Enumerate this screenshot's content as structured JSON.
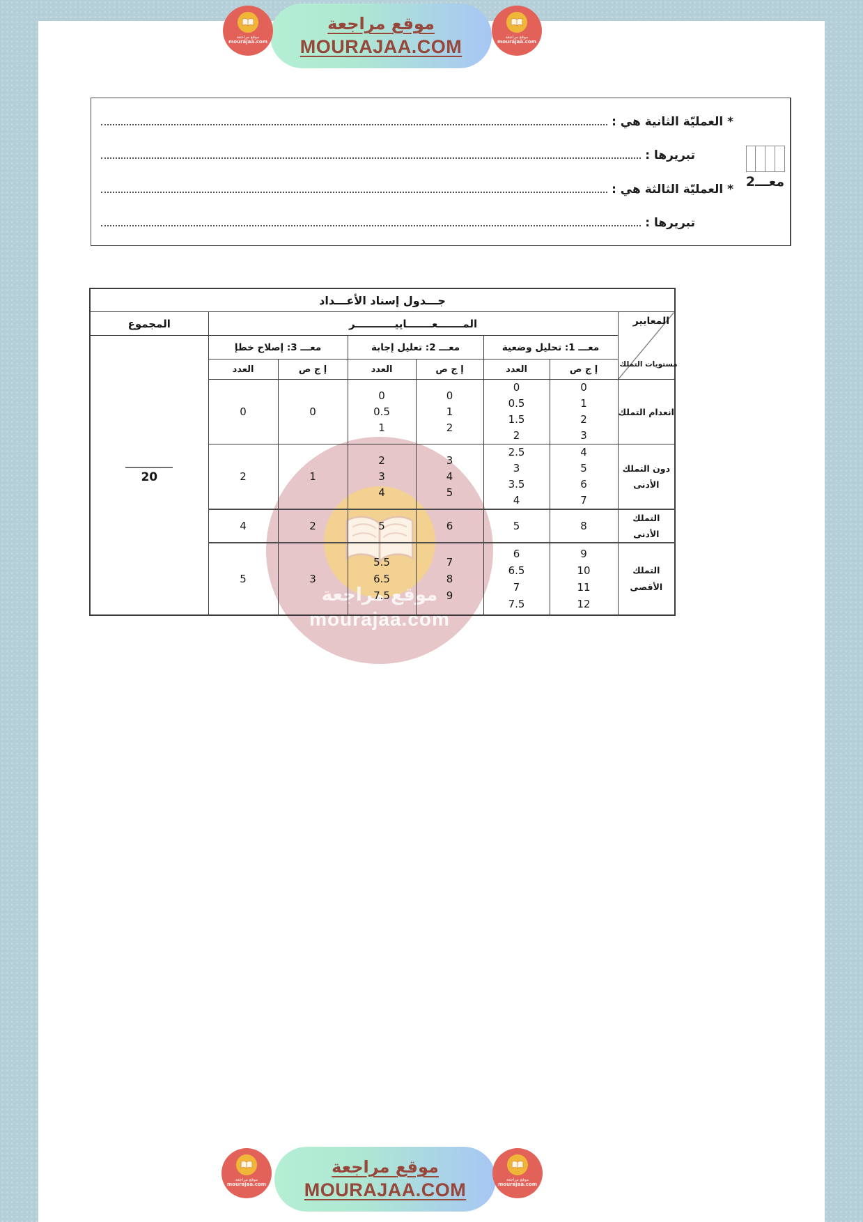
{
  "banner": {
    "site_ar": "موقع مراجعة",
    "site_en": "MOURAJAA.COM"
  },
  "badge": {
    "line_ar": "موقع مراجعة",
    "line_en": "mourajaa.com"
  },
  "answer_box": {
    "lines": [
      {
        "label": "* العمليّة الثانية هي :",
        "indent": false
      },
      {
        "label": "تبريرها :",
        "indent": true
      },
      {
        "label": "* العمليّة الثالثة هي :",
        "indent": false
      },
      {
        "label": "تبريرها :",
        "indent": true
      }
    ],
    "score_label": "معـــ2"
  },
  "table": {
    "title": "جـــدول إسناد الأعـــداد",
    "total_header": "المجموع",
    "criteria_header": "المـــــــعـــــــاييـــــــــــر",
    "diag_top": "المعايير",
    "diag_bottom": "مستويات التملك",
    "criteria": [
      {
        "name": "معـــ 1: تحليل وضعية"
      },
      {
        "name": "معـــ 2: تعليل إجابة"
      },
      {
        "name": "معـــ 3: إصلاح خطإ"
      }
    ],
    "sub_headers": {
      "count": "العدد",
      "correct": "إ ج ص"
    },
    "total_value": "20",
    "rows": [
      {
        "level": "انعدام التملك",
        "m1": {
          "correct": [
            "0",
            "1",
            "2",
            "3"
          ],
          "count": [
            "0",
            "0.5",
            "1.5",
            "2"
          ]
        },
        "m2": {
          "correct": [
            "0",
            "1",
            "2"
          ],
          "count": [
            "0",
            "0.5",
            "1"
          ]
        },
        "m3": {
          "correct": [
            "0"
          ],
          "count": [
            "0"
          ]
        }
      },
      {
        "level": "دون التملك الأدنى",
        "m1": {
          "correct": [
            "4",
            "5",
            "6",
            "7"
          ],
          "count": [
            "2.5",
            "3",
            "3.5",
            "4"
          ]
        },
        "m2": {
          "correct": [
            "3",
            "4",
            "5"
          ],
          "count": [
            "2",
            "3",
            "4"
          ]
        },
        "m3": {
          "correct": [
            "1"
          ],
          "count": [
            "2"
          ]
        }
      },
      {
        "level": "التملك الأدنى",
        "m1": {
          "correct": [
            "8"
          ],
          "count": [
            "5"
          ]
        },
        "m2": {
          "correct": [
            "6"
          ],
          "count": [
            "5"
          ]
        },
        "m3": {
          "correct": [
            "2"
          ],
          "count": [
            "4"
          ]
        }
      },
      {
        "level": "التملك الأقصى",
        "m1": {
          "correct": [
            "9",
            "10",
            "11",
            "12"
          ],
          "count": [
            "6",
            "6.5",
            "7",
            "7.5"
          ]
        },
        "m2": {
          "correct": [
            "7",
            "8",
            "9"
          ],
          "count": [
            "5.5",
            "6.5",
            "7.5"
          ]
        },
        "m3": {
          "correct": [
            "3"
          ],
          "count": [
            "5"
          ]
        }
      }
    ]
  },
  "watermark": {
    "line_ar": "موقع مراجعة",
    "line_en": "mourajaa.com"
  },
  "colors": {
    "background_blue": "#b5cfd8",
    "page_white": "#ffffff",
    "banner_green": "#b4eed3",
    "banner_blue": "#a7c6f4",
    "brand_brown": "#96473a",
    "badge_red": "#e2625a",
    "badge_yellow": "#f0b637",
    "watermark_pink": "#d49ca0",
    "watermark_yellow": "#f6d383",
    "table_border": "#3c3c3c"
  }
}
